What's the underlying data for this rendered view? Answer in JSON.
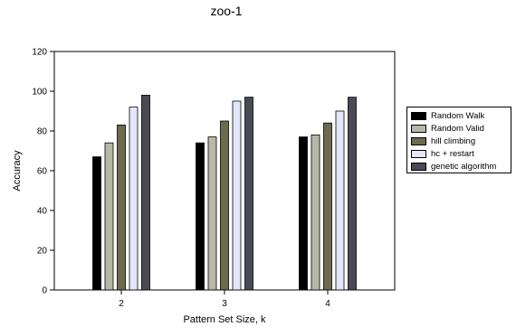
{
  "chart_data": {
    "type": "bar",
    "title": "zoo-1",
    "xlabel": "Pattern Set Size, k",
    "ylabel": "Accuracy",
    "categories": [
      "2",
      "3",
      "4"
    ],
    "ylim": [
      0,
      120
    ],
    "yticks": [
      0,
      20,
      40,
      60,
      80,
      100,
      120
    ],
    "grid": false,
    "legend_position": "right",
    "series": [
      {
        "name": "Random Walk",
        "color": "#000000",
        "values": [
          67,
          74,
          77
        ]
      },
      {
        "name": "Random Valid",
        "color": "#b8b8a8",
        "values": [
          74,
          77,
          78
        ]
      },
      {
        "name": "hill climbing",
        "color": "#6b6b4e",
        "values": [
          83,
          85,
          84
        ]
      },
      {
        "name": "hc + restart",
        "color": "#e6e6fa",
        "values": [
          92,
          95,
          90
        ]
      },
      {
        "name": "genetic algorithm",
        "color": "#4a4a55",
        "values": [
          98,
          97,
          97
        ]
      }
    ]
  }
}
